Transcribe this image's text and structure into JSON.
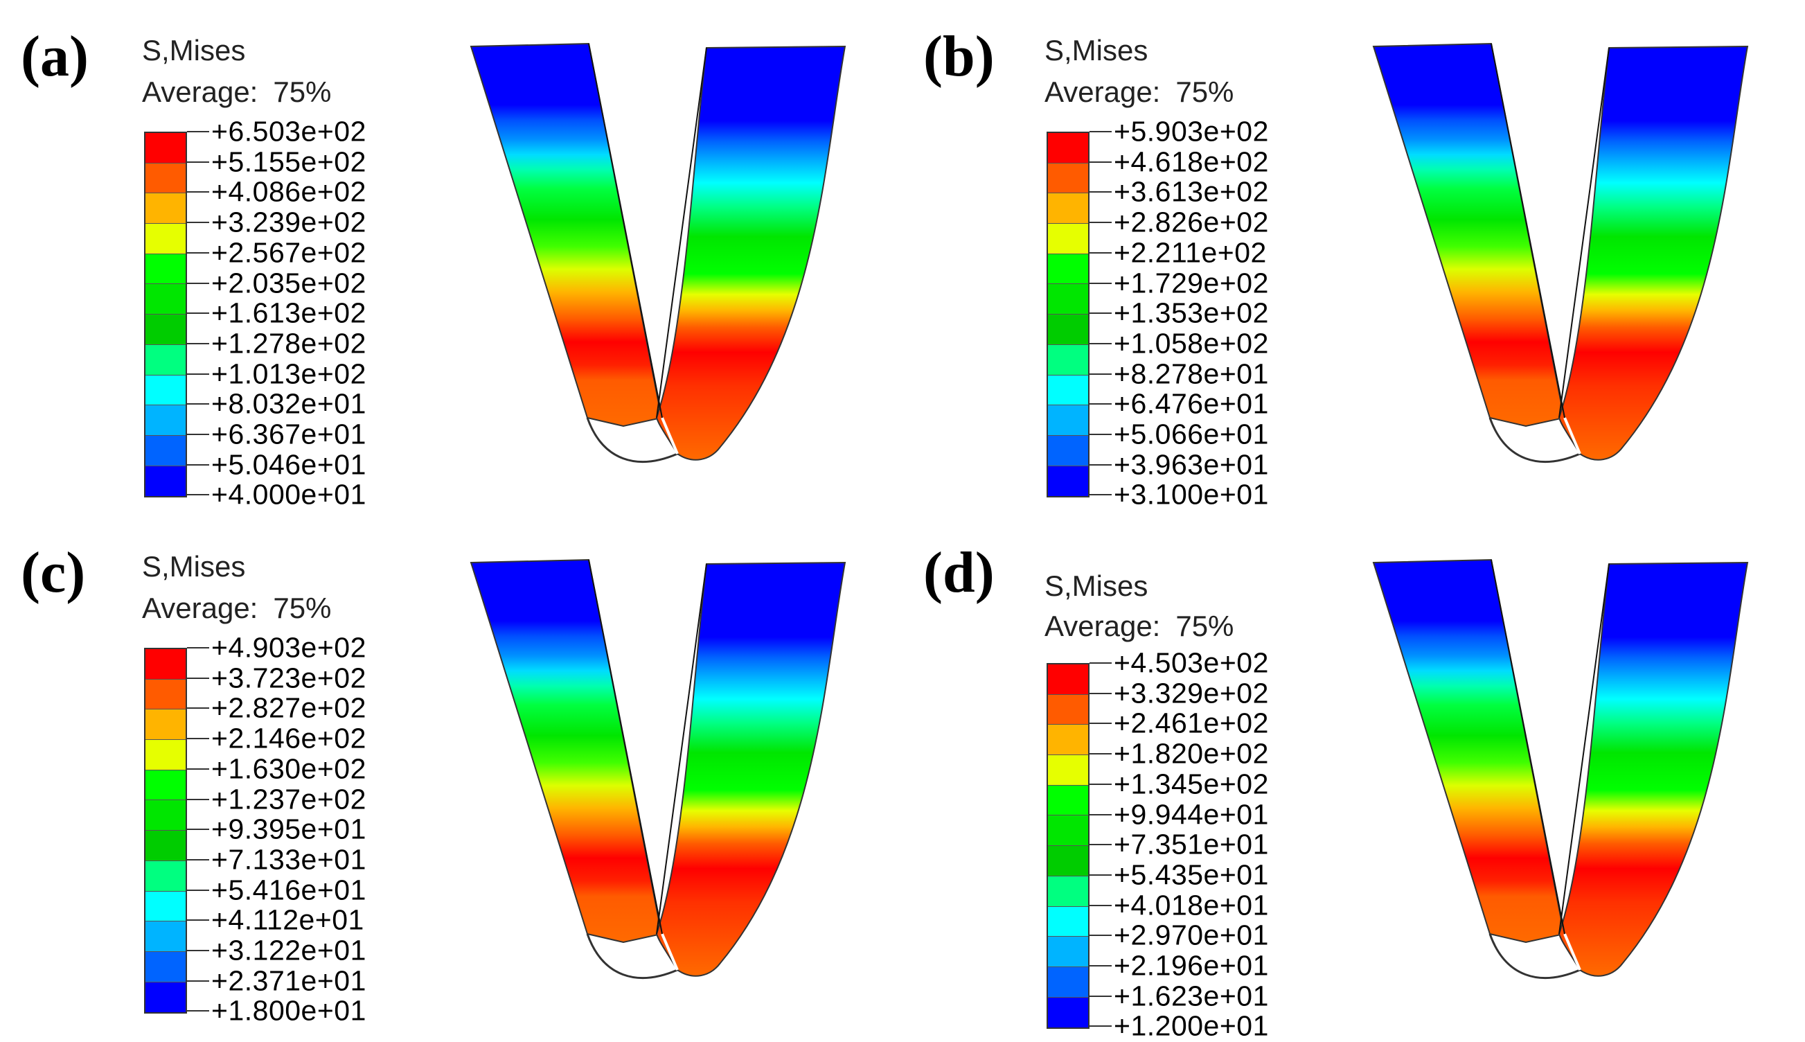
{
  "variable": "S,Mises",
  "average_label": "Average:",
  "average_value": "75%",
  "colors": [
    "#ff0000",
    "#ff5b00",
    "#ffb400",
    "#e6ff00",
    "#00ff00",
    "#00e600",
    "#00cc00",
    "#00ff80",
    "#00ffff",
    "#00b4ff",
    "#0064ff",
    "#0000ff"
  ],
  "panels": [
    {
      "label": "(a)",
      "legend": [
        "+6.503e+02",
        "+5.155e+02",
        "+4.086e+02",
        "+3.239e+02",
        "+2.567e+02",
        "+2.035e+02",
        "+1.613e+02",
        "+1.278e+02",
        "+1.013e+02",
        "+8.032e+01",
        "+6.367e+01",
        "+5.046e+01",
        "+4.000e+01"
      ]
    },
    {
      "label": "(b)",
      "legend": [
        "+5.903e+02",
        "+4.618e+02",
        "+3.613e+02",
        "+2.826e+02",
        "+2.211e+02",
        "+1.729e+02",
        "+1.353e+02",
        "+1.058e+02",
        "+8.278e+01",
        "+6.476e+01",
        "+5.066e+01",
        "+3.963e+01",
        "+3.100e+01"
      ]
    },
    {
      "label": "(c)",
      "legend": [
        "+4.903e+02",
        "+3.723e+02",
        "+2.827e+02",
        "+2.146e+02",
        "+1.630e+02",
        "+1.237e+02",
        "+9.395e+01",
        "+7.133e+01",
        "+5.416e+01",
        "+4.112e+01",
        "+3.122e+01",
        "+2.371e+01",
        "+1.800e+01"
      ]
    },
    {
      "label": "(d)",
      "legend": [
        "+4.503e+02",
        "+3.329e+02",
        "+2.461e+02",
        "+1.820e+02",
        "+1.345e+02",
        "+9.944e+01",
        "+7.351e+01",
        "+5.435e+01",
        "+4.018e+01",
        "+2.970e+01",
        "+2.196e+01",
        "+1.623e+01",
        "+1.200e+01"
      ]
    }
  ]
}
